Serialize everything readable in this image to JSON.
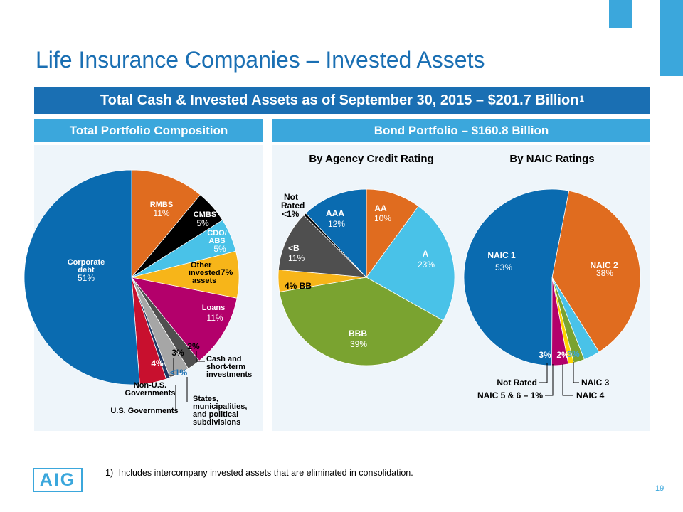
{
  "title": "Life Insurance Companies – Invested Assets",
  "banner": {
    "text": "Total Cash & Invested Assets as of September 30, 2015 – $201.7 Billion",
    "sup": "1"
  },
  "left_header": "Total Portfolio Composition",
  "right_header": "Bond Portfolio – $160.8 Billion",
  "footnote": {
    "marker": "1)",
    "text": "Includes intercompany invested assets that are eliminated in consolidation."
  },
  "page_number": "19",
  "logo": "AIG",
  "colors": {
    "dark_blue": "#1A6FB3",
    "light_blue": "#3BA7DC",
    "pie_blue": "#0A6BB0",
    "orange": "#E06C1F",
    "black": "#000000",
    "cyan": "#49C2E8",
    "gold": "#F7B519",
    "magenta": "#B3006B",
    "gray": "#A6A6A6",
    "dark_gray": "#4F4F4F",
    "red": "#C8102E",
    "navy": "#1F3864",
    "green": "#7AA330",
    "yellow": "#FFD400",
    "panel": "#EEF5FA"
  },
  "chart_data": [
    {
      "type": "pie",
      "title": "Total Portfolio Composition",
      "slices": [
        {
          "name": "RMBS",
          "value": 11,
          "label": "11%",
          "color": "#E06C1F"
        },
        {
          "name": "CMBS",
          "value": 5,
          "label": "5%",
          "color": "#000000"
        },
        {
          "name": "CDO/ ABS",
          "value": 5,
          "label": "5%",
          "color": "#49C2E8"
        },
        {
          "name": "Other invested assets",
          "value": 7,
          "label": "7%",
          "color": "#F7B519"
        },
        {
          "name": "Loans",
          "value": 11,
          "label": "11%",
          "color": "#B3006B"
        },
        {
          "name": "Cash and short-term investments",
          "value": 2,
          "label": "2%",
          "color": "#4F4F4F"
        },
        {
          "name": "States, municipalities, and political subdivisions",
          "value": 3,
          "label": "3%",
          "color": "#A6A6A6"
        },
        {
          "name": "Non-U.S. Governments",
          "value": 0.6,
          "label": "<1%",
          "color": "#1F3864"
        },
        {
          "name": "U.S. Governments",
          "value": 4,
          "label": "4%",
          "color": "#C8102E"
        },
        {
          "name": "Corporate debt",
          "value": 51,
          "label": "51%",
          "color": "#0A6BB0"
        }
      ],
      "text": {
        "rmbs": "RMBS",
        "rmbs_pct": "11%",
        "cmbs": "CMBS",
        "cmbs_pct": "5%",
        "cdo_1": "CDO/",
        "cdo_2": "ABS",
        "cdo_pct": "5%",
        "other_1": "Other",
        "other_2": "invested",
        "other_pct": "7%",
        "other_3": "assets",
        "loans": "Loans",
        "loans_pct": "11%",
        "cash_pct": "2%",
        "cash_1": "Cash and",
        "cash_2": "short-term",
        "cash_3": "investments",
        "states_pct": "3%",
        "states_1": "States,",
        "states_2": "municipalities,",
        "states_3": "and political",
        "states_4": "subdivisions",
        "nonus_pct": "<1%",
        "nonus_1": "Non-U.S.",
        "nonus_2": "Governments",
        "usgov_pct": "4%",
        "usgov": "U.S. Governments",
        "corp_1": "Corporate",
        "corp_2": "debt",
        "corp_pct": "51%"
      }
    },
    {
      "type": "pie",
      "title": "By Agency Credit Rating",
      "slices": [
        {
          "name": "AA",
          "value": 10,
          "label": "10%",
          "color": "#E06C1F"
        },
        {
          "name": "A",
          "value": 23,
          "label": "23%",
          "color": "#49C2E8"
        },
        {
          "name": "BBB",
          "value": 39,
          "label": "39%",
          "color": "#7AA330"
        },
        {
          "name": "BB",
          "value": 4,
          "label": "4%",
          "color": "#F7B519"
        },
        {
          "name": "<B",
          "value": 11,
          "label": "11%",
          "color": "#4F4F4F"
        },
        {
          "name": "Not Rated",
          "value": 0.5,
          "label": "<1%",
          "color": "#000000"
        },
        {
          "name": "AAA",
          "value": 12,
          "label": "12%",
          "color": "#0A6BB0"
        }
      ],
      "text": {
        "aa": "AA",
        "aa_pct": "10%",
        "a": "A",
        "a_pct": "23%",
        "bbb": "BBB",
        "bbb_pct": "39%",
        "bb": "4% BB",
        "b": "<B",
        "b_pct": "11%",
        "nr_1": "Not",
        "nr_2": "Rated",
        "nr_pct": "<1%",
        "aaa": "AAA",
        "aaa_pct": "12%"
      }
    },
    {
      "type": "pie",
      "title": "By NAIC Ratings",
      "slices": [
        {
          "name": "NAIC 2",
          "value": 38,
          "label": "38%",
          "color": "#E06C1F"
        },
        {
          "name": "NAIC 3",
          "value": 3,
          "label": "3%",
          "color": "#49C2E8"
        },
        {
          "name": "NAIC 4",
          "value": 2,
          "label": "2%",
          "color": "#7AA330"
        },
        {
          "name": "NAIC 5 & 6",
          "value": 1,
          "label": "1%",
          "color": "#FFD400"
        },
        {
          "name": "Not Rated",
          "value": 3,
          "label": "3%",
          "color": "#B3006B"
        },
        {
          "name": "NAIC 1",
          "value": 53,
          "label": "53%",
          "color": "#0A6BB0"
        }
      ],
      "text": {
        "n1": "NAIC 1",
        "n1_pct": "53%",
        "n2": "NAIC 2",
        "n2_pct": "38%",
        "nr_pct": "3%",
        "n4_pct": "2%",
        "n3_pct": "3%",
        "nr": "Not Rated",
        "n3": "NAIC 3",
        "n56": "NAIC 5 & 6 – 1%",
        "n4": "NAIC 4"
      }
    }
  ]
}
